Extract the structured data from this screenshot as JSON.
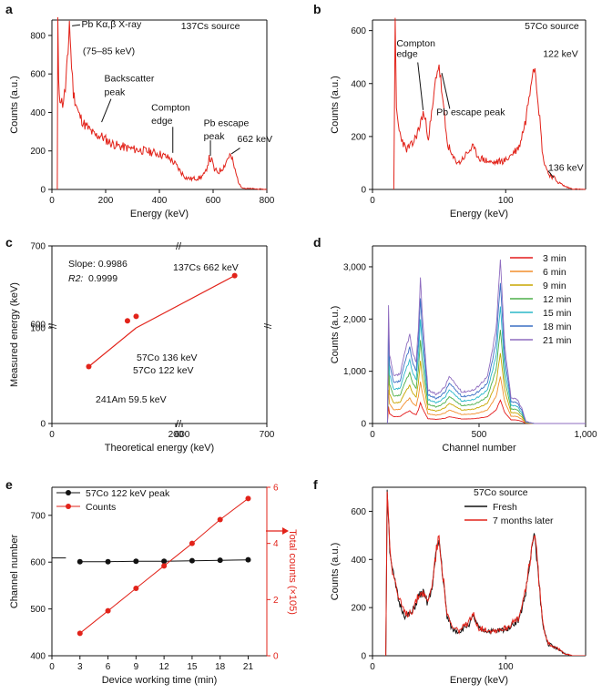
{
  "chart_data": [
    {
      "id": "a",
      "panel_label": "a",
      "type": "line",
      "source_label": "137Cs source",
      "xlabel": "Energy (keV)",
      "ylabel": "Counts (a.u.)",
      "xlim": [
        0,
        800
      ],
      "ylim": [
        0,
        880
      ],
      "xticks": [
        0,
        200,
        400,
        600,
        800
      ],
      "yticks": [
        0,
        200,
        400,
        600,
        800
      ],
      "color": "#e2231a",
      "spectrum": [
        [
          20,
          0
        ],
        [
          22,
          880
        ],
        [
          25,
          540
        ],
        [
          30,
          480
        ],
        [
          40,
          445
        ],
        [
          50,
          520
        ],
        [
          55,
          620
        ],
        [
          60,
          700
        ],
        [
          65,
          880
        ],
        [
          70,
          720
        ],
        [
          80,
          500
        ],
        [
          100,
          390
        ],
        [
          120,
          340
        ],
        [
          140,
          310
        ],
        [
          160,
          280
        ],
        [
          180,
          280
        ],
        [
          200,
          260
        ],
        [
          220,
          240
        ],
        [
          250,
          225
        ],
        [
          300,
          210
        ],
        [
          350,
          200
        ],
        [
          400,
          185
        ],
        [
          440,
          160
        ],
        [
          460,
          130
        ],
        [
          480,
          90
        ],
        [
          500,
          60
        ],
        [
          520,
          55
        ],
        [
          550,
          60
        ],
        [
          570,
          80
        ],
        [
          585,
          160
        ],
        [
          595,
          150
        ],
        [
          605,
          100
        ],
        [
          620,
          90
        ],
        [
          640,
          120
        ],
        [
          650,
          150
        ],
        [
          662,
          180
        ],
        [
          672,
          150
        ],
        [
          685,
          80
        ],
        [
          700,
          20
        ],
        [
          720,
          5
        ],
        [
          800,
          0
        ]
      ],
      "annotations": [
        {
          "text": "Pb Kα,β X-ray",
          "x": 75,
          "y": 860
        },
        {
          "text": "(75–85 keV)",
          "x": 75,
          "y": 760
        },
        {
          "text": "Backscatter",
          "x": 180,
          "y": 530
        },
        {
          "text": "peak",
          "x": 180,
          "y": 470
        },
        {
          "text": "Compton",
          "x": 440,
          "y": 380
        },
        {
          "text": "edge",
          "x": 440,
          "y": 320
        },
        {
          "text": "Pb escape",
          "x": 590,
          "y": 310
        },
        {
          "text": "peak",
          "x": 590,
          "y": 250
        },
        {
          "text": "662 keV",
          "x": 662,
          "y": 240
        }
      ]
    },
    {
      "id": "b",
      "panel_label": "b",
      "type": "line",
      "source_label": "57Co source",
      "xlabel": "Energy (keV)",
      "ylabel": "Counts (a.u.)",
      "xlim": [
        0,
        160
      ],
      "ylim": [
        0,
        640
      ],
      "xticks": [
        0,
        100
      ],
      "yticks": [
        0,
        200,
        400,
        600
      ],
      "color": "#e2231a",
      "spectrum": [
        [
          16,
          0
        ],
        [
          17,
          620
        ],
        [
          18,
          300
        ],
        [
          20,
          220
        ],
        [
          25,
          150
        ],
        [
          30,
          170
        ],
        [
          35,
          230
        ],
        [
          38,
          290
        ],
        [
          40,
          250
        ],
        [
          42,
          200
        ],
        [
          45,
          300
        ],
        [
          48,
          440
        ],
        [
          50,
          470
        ],
        [
          53,
          320
        ],
        [
          56,
          180
        ],
        [
          60,
          120
        ],
        [
          65,
          100
        ],
        [
          70,
          130
        ],
        [
          75,
          160
        ],
        [
          80,
          120
        ],
        [
          90,
          100
        ],
        [
          100,
          110
        ],
        [
          110,
          160
        ],
        [
          115,
          260
        ],
        [
          120,
          450
        ],
        [
          122,
          470
        ],
        [
          125,
          300
        ],
        [
          128,
          120
        ],
        [
          132,
          60
        ],
        [
          136,
          45
        ],
        [
          140,
          25
        ],
        [
          145,
          10
        ],
        [
          150,
          2
        ],
        [
          160,
          0
        ]
      ],
      "annotations": [
        {
          "text": "Compton",
          "x": 35,
          "y": 530
        },
        {
          "text": "edge",
          "x": 35,
          "y": 490
        },
        {
          "text": "Pb escape peak",
          "x": 72,
          "y": 285
        },
        {
          "text": "122 keV",
          "x": 130,
          "y": 510
        },
        {
          "text": "136 keV",
          "x": 140,
          "y": 80
        }
      ]
    },
    {
      "id": "c",
      "panel_label": "c",
      "type": "scatter",
      "xlabel": "Theoretical energy (keV)",
      "ylabel": "Measured energy (keV)",
      "xlim": [
        0,
        700
      ],
      "ylim": [
        0,
        700
      ],
      "xticks": [
        0,
        200,
        600,
        700
      ],
      "yticks": [
        0,
        100,
        600,
        700
      ],
      "color": "#e2231a",
      "points": [
        {
          "x": 59.5,
          "y": 59.5,
          "label": "241Am 59.5 keV"
        },
        {
          "x": 122,
          "y": 122,
          "label": "57Co 122 keV"
        },
        {
          "x": 136,
          "y": 136,
          "label": "57Co 136 keV"
        },
        {
          "x": 662,
          "y": 662,
          "label": "137Cs 662 keV"
        }
      ],
      "slope_text": "Slope: 0.9986",
      "r2_text": "0.9999",
      "r2_label": "R2:"
    },
    {
      "id": "d",
      "panel_label": "d",
      "type": "line",
      "xlabel": "Channel number",
      "ylabel": "Counts (a.u.)",
      "xlim": [
        0,
        1000
      ],
      "ylim": [
        0,
        3400
      ],
      "xticks": [
        0,
        500,
        1000
      ],
      "yticks": [
        0,
        1000,
        2000,
        3000
      ],
      "xtick_labels": [
        "0",
        "500",
        "1,000"
      ],
      "ytick_labels": [
        "0",
        "1,000",
        "2,000",
        "3,000"
      ],
      "series": [
        {
          "name": "3 min",
          "color": "#e41a1c",
          "scale": 0.143
        },
        {
          "name": "6 min",
          "color": "#f28e2b",
          "scale": 0.286
        },
        {
          "name": "9 min",
          "color": "#c8a600",
          "scale": 0.429
        },
        {
          "name": "12 min",
          "color": "#4daf4a",
          "scale": 0.571
        },
        {
          "name": "15 min",
          "color": "#2ab7c9",
          "scale": 0.714
        },
        {
          "name": "18 min",
          "color": "#3b6fc4",
          "scale": 0.857
        },
        {
          "name": "21 min",
          "color": "#8e6bbf",
          "scale": 1.0
        }
      ],
      "base_spectrum": [
        [
          70,
          0
        ],
        [
          75,
          2250
        ],
        [
          80,
          1300
        ],
        [
          100,
          900
        ],
        [
          130,
          950
        ],
        [
          160,
          1500
        ],
        [
          175,
          1700
        ],
        [
          190,
          1300
        ],
        [
          205,
          1200
        ],
        [
          215,
          1800
        ],
        [
          225,
          2800
        ],
        [
          235,
          2000
        ],
        [
          260,
          650
        ],
        [
          300,
          550
        ],
        [
          340,
          700
        ],
        [
          360,
          900
        ],
        [
          380,
          800
        ],
        [
          420,
          600
        ],
        [
          480,
          650
        ],
        [
          540,
          900
        ],
        [
          580,
          1800
        ],
        [
          600,
          3150
        ],
        [
          620,
          1500
        ],
        [
          650,
          500
        ],
        [
          680,
          450
        ],
        [
          700,
          300
        ],
        [
          720,
          40
        ],
        [
          760,
          0
        ],
        [
          1000,
          0
        ]
      ]
    },
    {
      "id": "e",
      "panel_label": "e",
      "type": "line",
      "xlabel": "Device working time (min)",
      "ylabel": "Channel number",
      "y2label": "Total counts (×105)",
      "xlim": [
        0,
        23
      ],
      "ylim": [
        400,
        760
      ],
      "y2lim": [
        0,
        6
      ],
      "xticks": [
        0,
        3,
        6,
        9,
        12,
        15,
        18,
        21
      ],
      "yticks": [
        400,
        500,
        600,
        700
      ],
      "y2ticks": [
        0,
        2,
        4,
        6
      ],
      "x": [
        3,
        6,
        9,
        12,
        15,
        18,
        21
      ],
      "series": [
        {
          "name": "57Co 122 keV peak",
          "axis": "left",
          "color": "#111111",
          "values": [
            601,
            601,
            602,
            602,
            603,
            604,
            605
          ]
        },
        {
          "name": "Counts",
          "axis": "right",
          "color": "#e2231a",
          "values": [
            0.8,
            1.6,
            2.4,
            3.2,
            4.0,
            4.85,
            5.6
          ]
        }
      ]
    },
    {
      "id": "f",
      "panel_label": "f",
      "type": "line",
      "source_label": "57Co source",
      "xlabel": "Energy (keV)",
      "ylabel": "Counts (a.u.)",
      "xlim": [
        0,
        160
      ],
      "ylim": [
        0,
        700
      ],
      "xticks": [
        0,
        100
      ],
      "yticks": [
        0,
        200,
        400,
        600
      ],
      "series": [
        {
          "name": "Fresh",
          "color": "#111111",
          "spectrum": [
            [
              10,
              0
            ],
            [
              11,
              700
            ],
            [
              13,
              450
            ],
            [
              15,
              350
            ],
            [
              20,
              220
            ],
            [
              25,
              160
            ],
            [
              30,
              180
            ],
            [
              35,
              250
            ],
            [
              38,
              260
            ],
            [
              41,
              220
            ],
            [
              44,
              260
            ],
            [
              48,
              430
            ],
            [
              50,
              480
            ],
            [
              53,
              320
            ],
            [
              56,
              160
            ],
            [
              60,
              110
            ],
            [
              65,
              100
            ],
            [
              72,
              130
            ],
            [
              76,
              160
            ],
            [
              80,
              110
            ],
            [
              90,
              100
            ],
            [
              100,
              110
            ],
            [
              110,
              150
            ],
            [
              115,
              260
            ],
            [
              120,
              460
            ],
            [
              122,
              500
            ],
            [
              125,
              300
            ],
            [
              128,
              120
            ],
            [
              132,
              50
            ],
            [
              138,
              30
            ],
            [
              145,
              8
            ],
            [
              150,
              0
            ],
            [
              160,
              0
            ]
          ]
        },
        {
          "name": "7 months later",
          "color": "#e2231a",
          "spectrum": [
            [
              10,
              0
            ],
            [
              11,
              700
            ],
            [
              13,
              460
            ],
            [
              15,
              360
            ],
            [
              20,
              230
            ],
            [
              25,
              170
            ],
            [
              30,
              190
            ],
            [
              35,
              255
            ],
            [
              38,
              265
            ],
            [
              41,
              225
            ],
            [
              44,
              270
            ],
            [
              48,
              440
            ],
            [
              50,
              490
            ],
            [
              53,
              330
            ],
            [
              56,
              170
            ],
            [
              60,
              115
            ],
            [
              65,
              105
            ],
            [
              72,
              135
            ],
            [
              76,
              170
            ],
            [
              80,
              115
            ],
            [
              90,
              105
            ],
            [
              100,
              115
            ],
            [
              110,
              155
            ],
            [
              115,
              270
            ],
            [
              120,
              470
            ],
            [
              122,
              515
            ],
            [
              125,
              310
            ],
            [
              128,
              125
            ],
            [
              132,
              55
            ],
            [
              138,
              32
            ],
            [
              145,
              9
            ],
            [
              150,
              0
            ],
            [
              160,
              0
            ]
          ]
        }
      ]
    }
  ]
}
